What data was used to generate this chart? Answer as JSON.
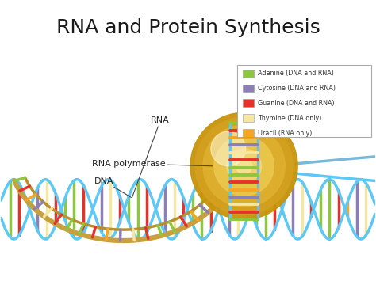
{
  "title": "RNA and Protein Synthesis",
  "title_fontsize": 18,
  "background_color": "#ffffff",
  "legend_items": [
    {
      "label": "Adenine (DNA and RNA)",
      "color": "#8dc63f"
    },
    {
      "label": "Cytosine (DNA and RNA)",
      "color": "#8b7fb5"
    },
    {
      "label": "Guanine (DNA and RNA)",
      "color": "#e63329"
    },
    {
      "label": "Thymine (DNA only)",
      "color": "#f5e6a0"
    },
    {
      "label": "Uracil (RNA only)",
      "color": "#f5a623"
    }
  ],
  "bar_colors": [
    "#8dc63f",
    "#e63329",
    "#f5a623",
    "#8b7fb5",
    "#f5e6a0",
    "#e63329",
    "#8dc63f"
  ],
  "rna_outer_color": "#c8a040",
  "rna_inner_color": "#b89030",
  "dna_strand_color": "#5bc8f5",
  "dna_strand_color2": "#7ab8d8",
  "polymerase_color_outer": "#d4a830",
  "polymerase_color_inner": "#f0d070",
  "polymerase_highlight": "#f8eab0",
  "fig_width": 4.74,
  "fig_height": 3.55,
  "dpi": 100
}
